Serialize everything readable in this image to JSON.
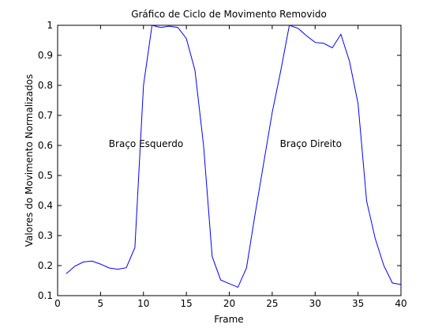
{
  "chart_data": {
    "type": "line",
    "title": "Gráfico de Ciclo de Movimento Removido",
    "xlabel": "Frame",
    "ylabel": "Valores do Movimento Normalizados",
    "xlim": [
      0,
      40
    ],
    "ylim": [
      0.1,
      1
    ],
    "xticks": [
      0,
      5,
      10,
      15,
      20,
      25,
      30,
      35,
      40
    ],
    "yticks": [
      0.1,
      0.2,
      0.3,
      0.4,
      0.5,
      0.6,
      0.7,
      0.8,
      0.9,
      1
    ],
    "grid": false,
    "line_color": "#0000ff",
    "series": [
      {
        "x": [
          1,
          2,
          3,
          4,
          5,
          6,
          7,
          8,
          9,
          10,
          11,
          12,
          13,
          14,
          15,
          16,
          17,
          18,
          19,
          20,
          21,
          22,
          23,
          24,
          25,
          26,
          27,
          28,
          29,
          30,
          31,
          32,
          33,
          34,
          35,
          36,
          37,
          38,
          39,
          40
        ],
        "y": [
          0.173,
          0.198,
          0.212,
          0.215,
          0.205,
          0.192,
          0.188,
          0.193,
          0.26,
          0.8,
          1.0,
          0.993,
          0.997,
          0.993,
          0.956,
          0.85,
          0.6,
          0.23,
          0.152,
          0.14,
          0.128,
          0.192,
          0.37,
          0.54,
          0.71,
          0.85,
          1.0,
          0.99,
          0.965,
          0.943,
          0.94,
          0.925,
          0.97,
          0.88,
          0.74,
          0.415,
          0.29,
          0.2,
          0.142,
          0.137
        ]
      }
    ],
    "annotations": [
      {
        "text": "Braço Esquerdo",
        "x": 10.3,
        "y": 0.595
      },
      {
        "text": "Braço Direito",
        "x": 29.5,
        "y": 0.595
      }
    ]
  }
}
